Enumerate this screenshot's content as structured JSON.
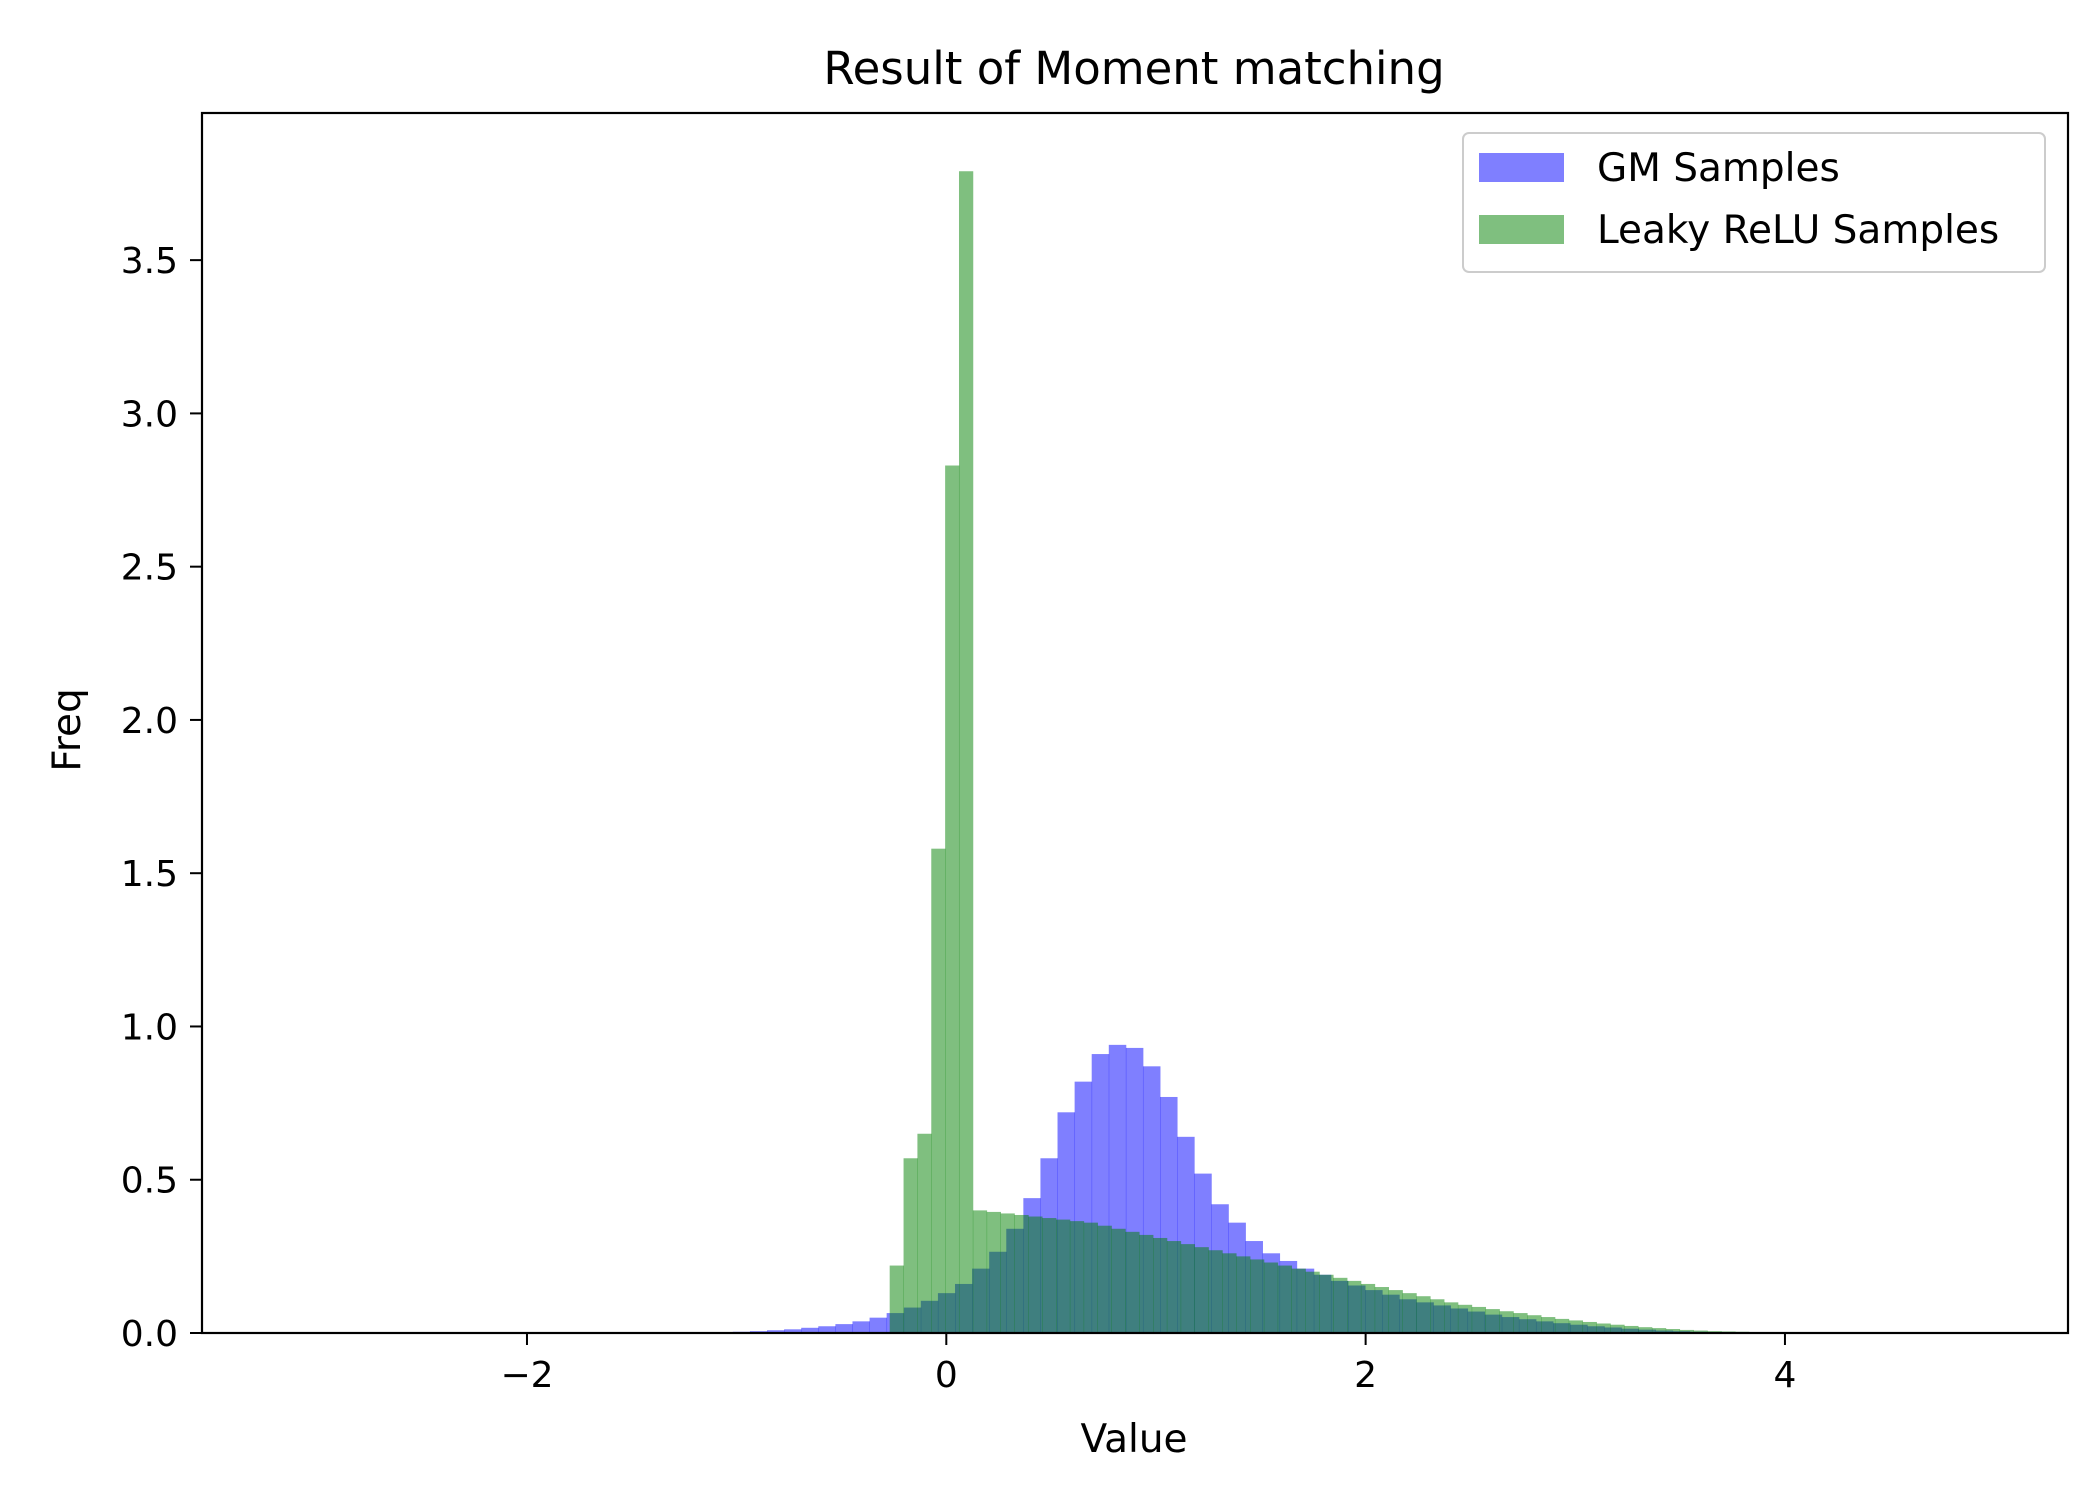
{
  "chart_data": {
    "type": "bar",
    "title": "Result of Moment matching",
    "xlabel": "Value",
    "ylabel": "Freq",
    "xlim": [
      -3.55,
      5.35
    ],
    "ylim": [
      0,
      3.98
    ],
    "xticks": [
      -2,
      0,
      2,
      4
    ],
    "xtick_labels": [
      "−2",
      "0",
      "2",
      "4"
    ],
    "yticks": [
      0,
      0.5,
      1,
      1.5,
      2,
      2.5,
      3,
      3.5
    ],
    "ytick_labels": [
      "0.0",
      "0.5",
      "1.0",
      "1.5",
      "2.0",
      "2.5",
      "3.0",
      "3.5"
    ],
    "grid": false,
    "legend_position": "top-right",
    "series": [
      {
        "name": "GM Samples",
        "color": "#0000ff",
        "alpha": 0.5,
        "bin_start": -3.3,
        "bin_width": 0.0815,
        "values": [
          0,
          0,
          0,
          0,
          0,
          0,
          0,
          0,
          0,
          0,
          0,
          0,
          0,
          0,
          0,
          0,
          0,
          0,
          0,
          0,
          0,
          0,
          0,
          0,
          0,
          0,
          0.002,
          0.003,
          0.004,
          0.006,
          0.009,
          0.012,
          0.017,
          0.022,
          0.029,
          0.038,
          0.05,
          0.065,
          0.083,
          0.105,
          0.13,
          0.16,
          0.21,
          0.265,
          0.34,
          0.44,
          0.57,
          0.72,
          0.82,
          0.91,
          0.94,
          0.93,
          0.87,
          0.77,
          0.64,
          0.52,
          0.42,
          0.36,
          0.3,
          0.26,
          0.235,
          0.21,
          0.19,
          0.17,
          0.155,
          0.14,
          0.125,
          0.11,
          0.1,
          0.09,
          0.08,
          0.07,
          0.06,
          0.052,
          0.045,
          0.038,
          0.032,
          0.027,
          0.022,
          0.018,
          0.014,
          0.011,
          0.008,
          0.006,
          0.004,
          0.003,
          0.002,
          0.001,
          0,
          0,
          0,
          0,
          0,
          0,
          0,
          0,
          0,
          0,
          0,
          0,
          0,
          0,
          0,
          0
        ]
      },
      {
        "name": "Leaky ReLU Samples",
        "color": "#008000",
        "alpha": 0.5,
        "bin_start": -0.27,
        "bin_width": 0.0661,
        "values": [
          0.22,
          0.57,
          0.65,
          1.58,
          2.83,
          3.79,
          0.4,
          0.395,
          0.39,
          0.385,
          0.38,
          0.375,
          0.37,
          0.365,
          0.36,
          0.35,
          0.34,
          0.33,
          0.32,
          0.31,
          0.3,
          0.29,
          0.28,
          0.27,
          0.26,
          0.25,
          0.24,
          0.23,
          0.22,
          0.21,
          0.2,
          0.19,
          0.18,
          0.17,
          0.16,
          0.15,
          0.14,
          0.13,
          0.12,
          0.11,
          0.1,
          0.092,
          0.085,
          0.078,
          0.071,
          0.065,
          0.058,
          0.052,
          0.046,
          0.041,
          0.036,
          0.031,
          0.027,
          0.023,
          0.019,
          0.016,
          0.013,
          0.01,
          0.008,
          0.006,
          0.005,
          0.004,
          0.003,
          0.002,
          0.001
        ]
      }
    ]
  }
}
